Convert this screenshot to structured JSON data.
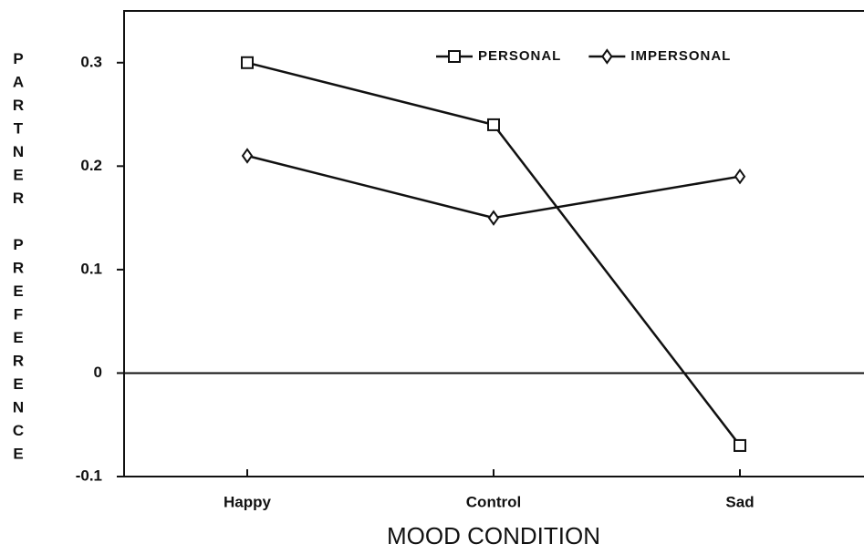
{
  "chart_data": {
    "type": "line",
    "x_label": "MOOD CONDITION",
    "y_label": "PARTNER PREFERENCE",
    "categories": [
      "Happy",
      "Control",
      "Sad"
    ],
    "series": [
      {
        "name": "PERSONAL",
        "color": "#111111",
        "marker": "square",
        "values": [
          0.3,
          0.24,
          -0.07
        ]
      },
      {
        "name": "IMPERSONAL",
        "color": "#111111",
        "marker": "diamond",
        "values": [
          0.21,
          0.15,
          0.19
        ]
      }
    ],
    "ylim": [
      -0.1,
      0.35
    ],
    "yticks": [
      -0.1,
      0,
      0.1,
      0.2,
      0.3
    ],
    "legend": "upper right"
  }
}
